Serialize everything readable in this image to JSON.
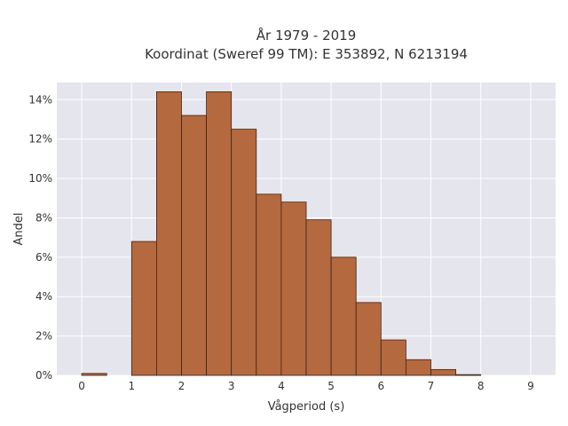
{
  "chart_data": {
    "type": "bar",
    "title_line1": "År 1979 - 2019",
    "title_line2": "Koordinat (Sweref 99 TM): E 353892, N 6213194",
    "xlabel": "Vågperiod (s)",
    "ylabel": "Andel",
    "xlim": [
      -0.5,
      9.5
    ],
    "ylim": [
      0,
      0.1487
    ],
    "x_ticks": [
      0,
      1,
      2,
      3,
      4,
      5,
      6,
      7,
      8,
      9
    ],
    "x_tick_labels": [
      "0",
      "1",
      "2",
      "3",
      "4",
      "5",
      "6",
      "7",
      "8",
      "9"
    ],
    "y_ticks": [
      0,
      0.02,
      0.04,
      0.06,
      0.08,
      0.1,
      0.12,
      0.14
    ],
    "y_tick_labels": [
      "0%",
      "2%",
      "4%",
      "6%",
      "8%",
      "10%",
      "12%",
      "14%"
    ],
    "bin_width": 0.5,
    "bins": [
      {
        "x0": 0.0,
        "x1": 0.5,
        "value": 0.001
      },
      {
        "x0": 0.5,
        "x1": 1.0,
        "value": 0.0
      },
      {
        "x0": 1.0,
        "x1": 1.5,
        "value": 0.068
      },
      {
        "x0": 1.5,
        "x1": 2.0,
        "value": 0.144
      },
      {
        "x0": 2.0,
        "x1": 2.5,
        "value": 0.132
      },
      {
        "x0": 2.5,
        "x1": 3.0,
        "value": 0.144
      },
      {
        "x0": 3.0,
        "x1": 3.5,
        "value": 0.125
      },
      {
        "x0": 3.5,
        "x1": 4.0,
        "value": 0.092
      },
      {
        "x0": 4.0,
        "x1": 4.5,
        "value": 0.088
      },
      {
        "x0": 4.5,
        "x1": 5.0,
        "value": 0.079
      },
      {
        "x0": 5.0,
        "x1": 5.5,
        "value": 0.06
      },
      {
        "x0": 5.5,
        "x1": 6.0,
        "value": 0.037
      },
      {
        "x0": 6.0,
        "x1": 6.5,
        "value": 0.018
      },
      {
        "x0": 6.5,
        "x1": 7.0,
        "value": 0.008
      },
      {
        "x0": 7.0,
        "x1": 7.5,
        "value": 0.003
      },
      {
        "x0": 7.5,
        "x1": 8.0,
        "value": 0.0004
      }
    ],
    "grid": true,
    "colors": {
      "bar_fill": "#b5693f",
      "bar_stroke": "#3a2418",
      "plot_background": "#e5e5ee",
      "grid": "#ffffff",
      "text": "#333333"
    }
  }
}
